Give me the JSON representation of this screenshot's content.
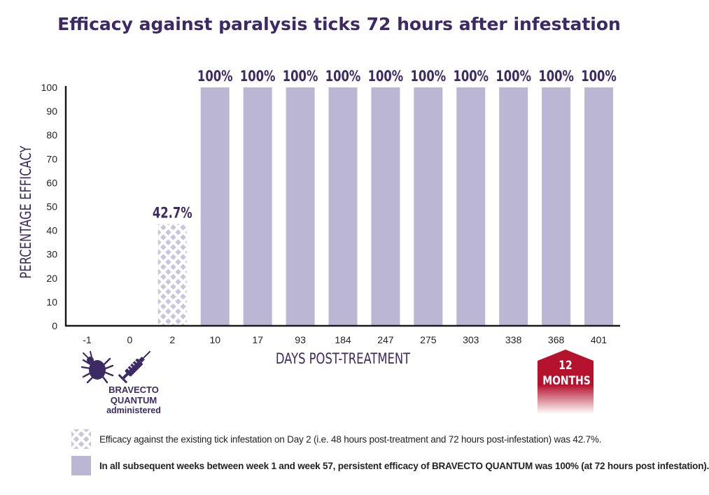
{
  "chart_data": {
    "type": "bar",
    "title": "Efficacy against paralysis ticks 72 hours after infestation",
    "xlabel": "DAYS POST-TREATMENT",
    "ylabel": "PERCENTAGE EFFICACY",
    "ylim": [
      0,
      100
    ],
    "yticks": [
      0,
      10,
      20,
      30,
      40,
      50,
      60,
      70,
      80,
      90,
      100
    ],
    "grid": false,
    "categories": [
      "-1",
      "0",
      "2",
      "10",
      "17",
      "93",
      "184",
      "247",
      "275",
      "303",
      "338",
      "368",
      "401"
    ],
    "values": [
      null,
      null,
      42.7,
      100,
      100,
      100,
      100,
      100,
      100,
      100,
      100,
      100,
      100
    ],
    "data_labels": [
      "",
      "",
      "42.7%",
      "100%",
      "100%",
      "100%",
      "100%",
      "100%",
      "100%",
      "100%",
      "100%",
      "100%",
      "100%"
    ],
    "bar_styles": [
      "none",
      "none",
      "hatched",
      "solid",
      "solid",
      "solid",
      "solid",
      "solid",
      "solid",
      "solid",
      "solid",
      "solid",
      "solid"
    ]
  },
  "colors": {
    "bar": "#bbb6d3",
    "hatch_bg": "#c9c5dc",
    "axis": "#1a1a1a",
    "title": "#3b2a63",
    "label": "#3b2a63",
    "badge": "#b5122e"
  },
  "icons": [
    "tick-icon",
    "syringe-icon"
  ],
  "admin_note": {
    "line1": "BRAVECTO",
    "line2": "QUANTUM",
    "line3": "administered"
  },
  "badge": {
    "line1": "12",
    "line2": "MONTHS"
  },
  "legend": [
    {
      "swatch": "hatched",
      "text": "Efficacy against the existing tick infestation on Day 2  (i.e. 48 hours post-treatment and 72 hours post-infestation) was 42.7%."
    },
    {
      "swatch": "solid",
      "text": "In all subsequent weeks between week 1 and week 57, persistent efficacy of BRAVECTO QUANTUM was 100% (at 72 hours post infestation)."
    }
  ]
}
